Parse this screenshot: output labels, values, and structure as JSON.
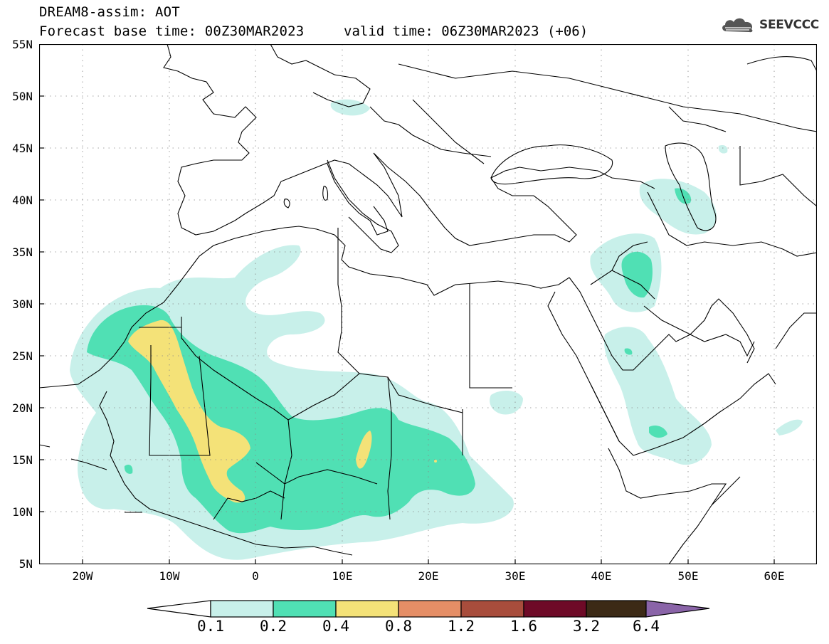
{
  "header": {
    "title": "DREAM8-assim: AOT",
    "base_time": "Forecast base time: 00Z30MAR2023",
    "valid_time": "valid time: 06Z30MAR2023 (+06)",
    "logo_text": "SEEVCCC"
  },
  "map": {
    "lat_labels": [
      "55N",
      "50N",
      "45N",
      "40N",
      "35N",
      "30N",
      "25N",
      "20N",
      "15N",
      "10N",
      "5N"
    ],
    "lon_labels": [
      "20W",
      "10W",
      "0",
      "10E",
      "20E",
      "30E",
      "40E",
      "50E",
      "60E"
    ],
    "lon_range": [
      -25,
      65
    ],
    "lat_range": [
      5,
      55
    ]
  },
  "legend": {
    "labels": [
      "0.1",
      "0.2",
      "0.4",
      "0.8",
      "1.2",
      "1.6",
      "3.2",
      "6.4"
    ],
    "colors": [
      "#c8f0ea",
      "#50e0b4",
      "#f4e278",
      "#e58e66",
      "#a84d3c",
      "#6e0a27",
      "#3c2a16",
      "#8a64a8"
    ],
    "under_color": "#ffffff"
  }
}
